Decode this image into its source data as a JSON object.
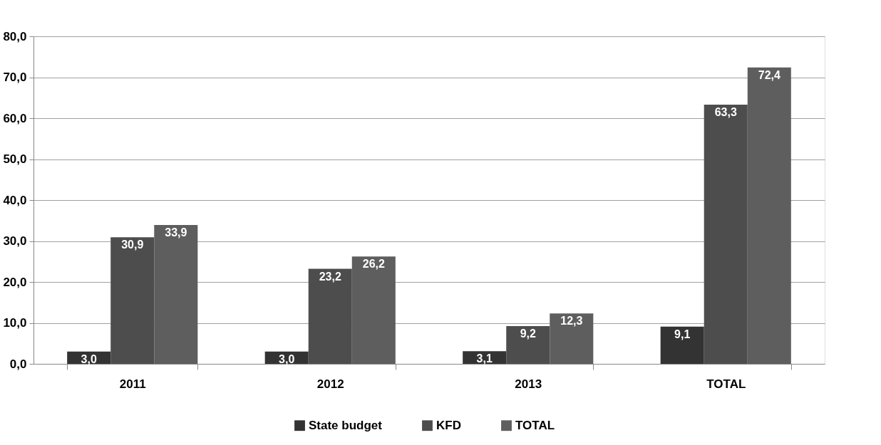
{
  "chart_data": {
    "type": "bar",
    "categories": [
      "2011",
      "2012",
      "2013",
      "TOTAL"
    ],
    "series": [
      {
        "name": "State budget",
        "color": "#333333",
        "values": [
          3.0,
          3.0,
          3.1,
          9.1
        ],
        "value_labels": [
          "3,0",
          "3,0",
          "3,1",
          "9,1"
        ]
      },
      {
        "name": "KFD",
        "color": "#4d4d4d",
        "values": [
          30.9,
          23.2,
          9.2,
          63.3
        ],
        "value_labels": [
          "30,9",
          "23,2",
          "9,2",
          "63,3"
        ]
      },
      {
        "name": "TOTAL",
        "color": "#5e5e5e",
        "values": [
          33.9,
          26.2,
          12.3,
          72.4
        ],
        "value_labels": [
          "33,9",
          "26,2",
          "12,3",
          "72,4"
        ]
      }
    ],
    "ylim": [
      0,
      80
    ],
    "yticks": [
      {
        "value": 0,
        "label": "0,0"
      },
      {
        "value": 10,
        "label": "10,0"
      },
      {
        "value": 20,
        "label": "20,0"
      },
      {
        "value": 30,
        "label": "30,0"
      },
      {
        "value": 40,
        "label": "40,0"
      },
      {
        "value": 50,
        "label": "50,0"
      },
      {
        "value": 60,
        "label": "60,0"
      },
      {
        "value": 70,
        "label": "70,0"
      },
      {
        "value": 80,
        "label": "80,0"
      }
    ],
    "grid": "y",
    "legend": "bottom"
  }
}
